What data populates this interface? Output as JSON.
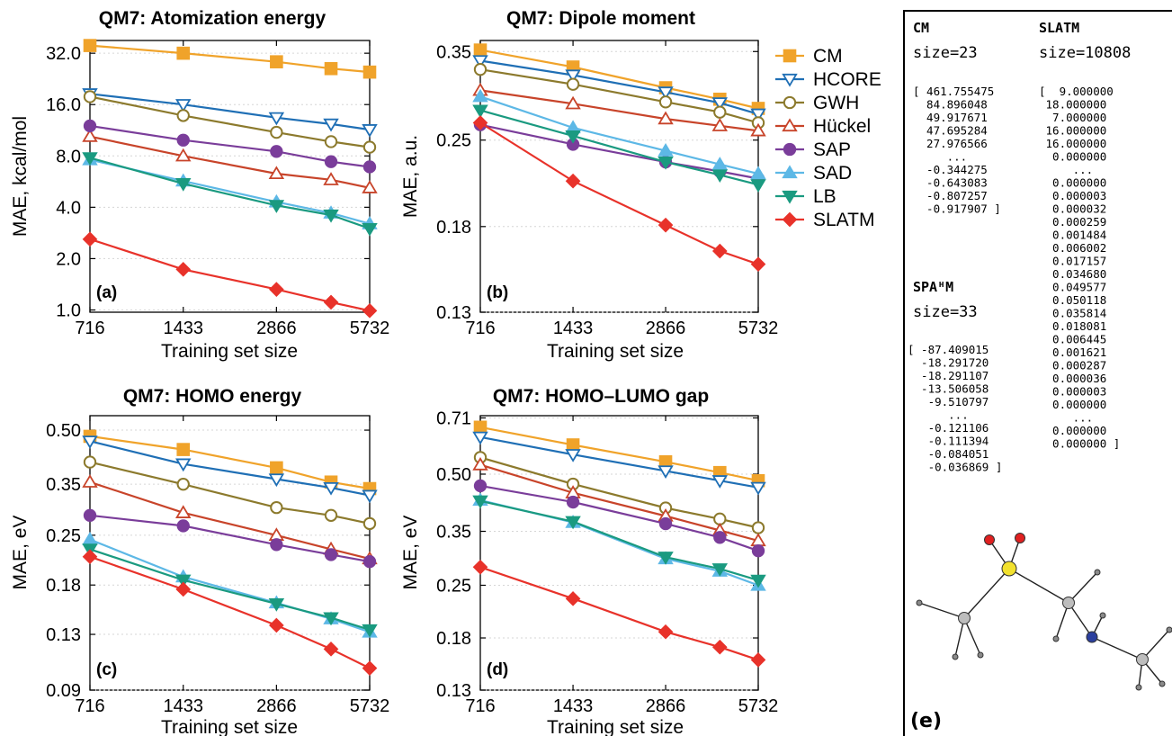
{
  "chart_data": [
    {
      "id": "a",
      "type": "line",
      "title": "QM7: Atomization energy",
      "xlabel": "Training set size",
      "ylabel": "MAE, kcal/mol",
      "panel_label": "(a)",
      "yscale": "log",
      "xscale": "log",
      "xlim": [
        716,
        5732
      ],
      "ylim": [
        0.97,
        38
      ],
      "xticks": [
        716,
        1433,
        2866,
        5732
      ],
      "xtick_labels": [
        "716",
        "1433",
        "2866",
        "5732"
      ],
      "yticks": [
        1.0,
        2.0,
        4.0,
        8.0,
        16.0,
        32.0
      ],
      "ytick_labels": [
        "1.0",
        "2.0",
        "4.0",
        "8.0",
        "16.0",
        "32.0"
      ],
      "x": [
        716,
        1433,
        2866,
        4300,
        5732
      ],
      "series": [
        {
          "name": "CM",
          "values": [
            35.5,
            32.0,
            28.5,
            26.0,
            24.8
          ]
        },
        {
          "name": "HCORE",
          "values": [
            18.5,
            16.0,
            13.4,
            12.3,
            11.4
          ]
        },
        {
          "name": "GWH",
          "values": [
            17.8,
            13.8,
            11.0,
            9.7,
            9.0
          ]
        },
        {
          "name": "Hückel",
          "values": [
            10.4,
            8.0,
            6.3,
            5.8,
            5.2
          ]
        },
        {
          "name": "SAP",
          "values": [
            12.0,
            9.9,
            8.5,
            7.4,
            6.9
          ]
        },
        {
          "name": "SAD",
          "values": [
            7.6,
            5.7,
            4.3,
            3.7,
            3.2
          ]
        },
        {
          "name": "LB",
          "values": [
            7.8,
            5.5,
            4.1,
            3.6,
            3.0
          ]
        },
        {
          "name": "SLATM",
          "values": [
            2.6,
            1.73,
            1.32,
            1.11,
            0.99
          ]
        }
      ]
    },
    {
      "id": "b",
      "type": "line",
      "title": "QM7: Dipole moment",
      "xlabel": "Training set size",
      "ylabel": "MAE, a.u.",
      "panel_label": "(b)",
      "yscale": "log",
      "xscale": "log",
      "xlim": [
        716,
        5732
      ],
      "ylim": [
        0.13,
        0.365
      ],
      "xticks": [
        716,
        1433,
        2866,
        5732
      ],
      "xtick_labels": [
        "716",
        "1433",
        "2866",
        "5732"
      ],
      "yticks": [
        0.13,
        0.18,
        0.25,
        0.35
      ],
      "ytick_labels": [
        "0.13",
        "0.18",
        "0.25",
        "0.35"
      ],
      "x": [
        716,
        1433,
        2866,
        4300,
        5732
      ],
      "series": [
        {
          "name": "CM",
          "values": [
            0.352,
            0.33,
            0.305,
            0.292,
            0.282
          ]
        },
        {
          "name": "HCORE",
          "values": [
            0.338,
            0.32,
            0.3,
            0.288,
            0.276
          ]
        },
        {
          "name": "GWH",
          "values": [
            0.327,
            0.309,
            0.289,
            0.278,
            0.267
          ]
        },
        {
          "name": "Hückel",
          "values": [
            0.302,
            0.287,
            0.271,
            0.264,
            0.259
          ]
        },
        {
          "name": "SAP",
          "values": [
            0.265,
            0.246,
            0.23,
            0.222,
            0.216
          ]
        },
        {
          "name": "SAD",
          "values": [
            0.295,
            0.262,
            0.24,
            0.228,
            0.22
          ]
        },
        {
          "name": "LB",
          "values": [
            0.28,
            0.254,
            0.23,
            0.219,
            0.211
          ]
        },
        {
          "name": "SLATM",
          "values": [
            0.267,
            0.214,
            0.181,
            0.164,
            0.156
          ]
        }
      ]
    },
    {
      "id": "c",
      "type": "line",
      "title": "QM7: HOMO energy",
      "xlabel": "Training set size",
      "ylabel": "MAE, eV",
      "panel_label": "(c)",
      "yscale": "log",
      "xscale": "log",
      "xlim": [
        716,
        5732
      ],
      "ylim": [
        0.09,
        0.55
      ],
      "xticks": [
        716,
        1433,
        2866,
        5732
      ],
      "xtick_labels": [
        "716",
        "1433",
        "2866",
        "5732"
      ],
      "yticks": [
        0.09,
        0.13,
        0.18,
        0.25,
        0.35,
        0.5
      ],
      "ytick_labels": [
        "0.09",
        "0.13",
        "0.18",
        "0.25",
        "0.35",
        "0.50"
      ],
      "x": [
        716,
        1433,
        2866,
        4300,
        5732
      ],
      "series": [
        {
          "name": "CM",
          "values": [
            0.48,
            0.44,
            0.39,
            0.355,
            0.34
          ]
        },
        {
          "name": "HCORE",
          "values": [
            0.465,
            0.4,
            0.362,
            0.342,
            0.325
          ]
        },
        {
          "name": "GWH",
          "values": [
            0.405,
            0.35,
            0.3,
            0.285,
            0.27
          ]
        },
        {
          "name": "Hückel",
          "values": [
            0.355,
            0.29,
            0.25,
            0.228,
            0.214
          ]
        },
        {
          "name": "SAP",
          "values": [
            0.285,
            0.266,
            0.235,
            0.22,
            0.21
          ]
        },
        {
          "name": "SAD",
          "values": [
            0.243,
            0.19,
            0.16,
            0.144,
            0.132
          ]
        },
        {
          "name": "LB",
          "values": [
            0.228,
            0.186,
            0.159,
            0.145,
            0.134
          ]
        },
        {
          "name": "SLATM",
          "values": [
            0.217,
            0.175,
            0.138,
            0.118,
            0.104
          ]
        }
      ]
    },
    {
      "id": "d",
      "type": "line",
      "title": "QM7: HOMO–LUMO gap",
      "xlabel": "Training set size",
      "ylabel": "MAE, eV",
      "panel_label": "(d)",
      "yscale": "log",
      "xscale": "log",
      "xlim": [
        716,
        5732
      ],
      "ylim": [
        0.13,
        0.72
      ],
      "xticks": [
        716,
        1433,
        2866,
        5732
      ],
      "xtick_labels": [
        "716",
        "1433",
        "2866",
        "5732"
      ],
      "yticks": [
        0.13,
        0.18,
        0.25,
        0.35,
        0.5,
        0.71
      ],
      "ytick_labels": [
        "0.13",
        "0.18",
        "0.25",
        "0.35",
        "0.50",
        "0.71"
      ],
      "x": [
        716,
        1433,
        2866,
        4300,
        5732
      ],
      "series": [
        {
          "name": "CM",
          "values": [
            0.67,
            0.6,
            0.54,
            0.505,
            0.48
          ]
        },
        {
          "name": "HCORE",
          "values": [
            0.63,
            0.565,
            0.51,
            0.48,
            0.46
          ]
        },
        {
          "name": "GWH",
          "values": [
            0.555,
            0.47,
            0.405,
            0.378,
            0.358
          ]
        },
        {
          "name": "Hückel",
          "values": [
            0.53,
            0.445,
            0.385,
            0.352,
            0.33
          ]
        },
        {
          "name": "SAP",
          "values": [
            0.465,
            0.42,
            0.367,
            0.337,
            0.31
          ]
        },
        {
          "name": "SAD",
          "values": [
            0.425,
            0.37,
            0.295,
            0.273,
            0.25
          ]
        },
        {
          "name": "LB",
          "values": [
            0.423,
            0.372,
            0.298,
            0.277,
            0.258
          ]
        },
        {
          "name": "SLATM",
          "values": [
            0.28,
            0.23,
            0.187,
            0.17,
            0.157
          ]
        }
      ]
    }
  ],
  "legend": {
    "placement": "right of panel (b)",
    "items": [
      {
        "name": "CM",
        "color": "#F0A32A",
        "marker": "square"
      },
      {
        "name": "HCORE",
        "color": "#1F6FB5",
        "marker": "triangle-down-open"
      },
      {
        "name": "GWH",
        "color": "#8C7A2D",
        "marker": "circle-open"
      },
      {
        "name": "Hückel",
        "color": "#C8442A",
        "marker": "triangle-up-open"
      },
      {
        "name": "SAP",
        "color": "#7A3D9A",
        "marker": "circle"
      },
      {
        "name": "SAD",
        "color": "#5DB8E6",
        "marker": "triangle-up"
      },
      {
        "name": "LB",
        "color": "#1A9A80",
        "marker": "triangle-down"
      },
      {
        "name": "SLATM",
        "color": "#E8322A",
        "marker": "diamond"
      }
    ]
  },
  "panel_e": {
    "label": "(e)",
    "cm": {
      "header": "CM",
      "size": "size=23",
      "lines": [
        "[ 461.755475",
        "  84.896048",
        "  49.917671",
        "  47.695284",
        "  27.976566",
        "     ...",
        "  -0.344275",
        "  -0.643083",
        "  -0.807257",
        "  -0.917907 ]"
      ]
    },
    "slatm": {
      "header": "SLATM",
      "size": "size=10808",
      "lines": [
        "[  9.000000",
        " 18.000000",
        "  7.000000",
        " 16.000000",
        " 16.000000",
        "  0.000000",
        "     ...",
        "  0.000000",
        "  0.000003",
        "  0.000032",
        "  0.000259",
        "  0.001484",
        "  0.006002",
        "  0.017157",
        "  0.034680",
        "  0.049577",
        "  0.050118",
        "  0.035814",
        "  0.018081",
        "  0.006445",
        "  0.001621",
        "  0.000287",
        "  0.000036",
        "  0.000003",
        "  0.000000",
        "     ...",
        "  0.000000",
        "  0.000000 ]"
      ]
    },
    "spahm": {
      "header": "SPAᴴM",
      "size": "size=33",
      "lines": [
        "[ -87.409015",
        "  -18.291720",
        "  -18.291107",
        "  -13.506058",
        "   -9.510797",
        "      ...",
        "   -0.121106",
        "   -0.111394",
        "   -0.084051",
        "   -0.036869 ]"
      ]
    }
  }
}
